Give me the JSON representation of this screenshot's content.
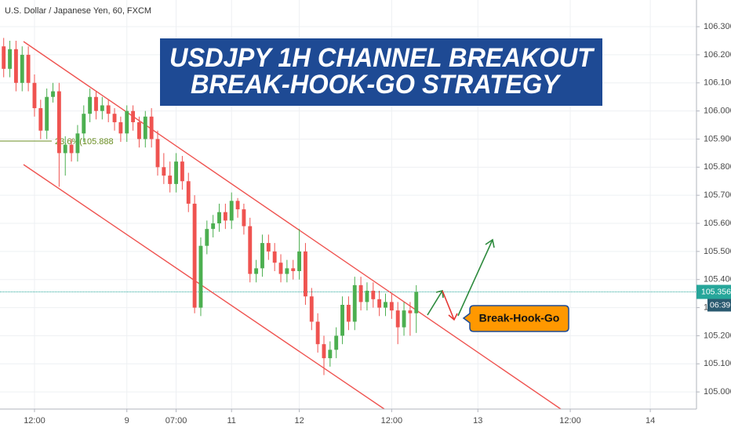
{
  "symbol": "U.S. Dollar / Japanese Yen, 60, FXCM",
  "title_lines": [
    "USDJPY 1H CHANNEL BREAKOUT",
    "BREAK-HOOK-GO STRATEGY"
  ],
  "fib_label": "23.6%(105.888",
  "callout": "Break-Hook-Go",
  "countdown": "06:39",
  "chart_data": {
    "type": "candlestick",
    "up_color": "#4caf50",
    "down_color": "#ef5350",
    "last_price": 105.356,
    "last_price_color": "#26a69a",
    "x": [
      0,
      1,
      2,
      3,
      4,
      5,
      6,
      7,
      8,
      9,
      10,
      11,
      12,
      13,
      14,
      15,
      16,
      17,
      18,
      19,
      20,
      21,
      22,
      23,
      24,
      25,
      26,
      27,
      28,
      29,
      30,
      31,
      32,
      33,
      34,
      35,
      36,
      37,
      38,
      39,
      40,
      41,
      42,
      43,
      44,
      45,
      46,
      47,
      48,
      49,
      50,
      51,
      52,
      53,
      54,
      55,
      56,
      57,
      58,
      59,
      60,
      61,
      62,
      63,
      64,
      65,
      66,
      67
    ],
    "open": [
      106.23,
      106.15,
      106.22,
      106.1,
      106.2,
      106.1,
      106.01,
      105.93,
      106.05,
      106.07,
      105.85,
      105.88,
      105.85,
      105.92,
      105.99,
      106.05,
      106.0,
      106.02,
      105.99,
      105.96,
      105.92,
      106.0,
      105.96,
      105.9,
      105.98,
      105.9,
      105.8,
      105.77,
      105.74,
      105.82,
      105.75,
      105.67,
      105.3,
      105.52,
      105.58,
      105.6,
      105.64,
      105.61,
      105.68,
      105.65,
      105.59,
      105.42,
      105.44,
      105.53,
      105.5,
      105.46,
      105.42,
      105.44,
      105.43,
      105.5,
      105.34,
      105.25,
      105.17,
      105.12,
      105.15,
      105.2,
      105.31,
      105.25,
      105.38,
      105.32,
      105.36,
      105.33,
      105.3,
      105.32,
      105.29,
      105.23,
      105.29,
      105.28
    ],
    "high": [
      106.26,
      106.25,
      106.25,
      106.23,
      106.23,
      106.13,
      106.04,
      106.08,
      106.1,
      106.1,
      105.91,
      105.9,
      105.95,
      106.02,
      106.08,
      106.07,
      106.05,
      106.04,
      106.01,
      105.98,
      106.02,
      106.02,
      105.98,
      106.0,
      106.01,
      105.93,
      105.85,
      105.82,
      105.85,
      105.84,
      105.78,
      105.7,
      105.55,
      105.61,
      105.63,
      105.67,
      105.67,
      105.71,
      105.69,
      105.67,
      105.62,
      105.47,
      105.56,
      105.56,
      105.53,
      105.49,
      105.47,
      105.47,
      105.58,
      105.53,
      105.37,
      105.28,
      105.2,
      105.18,
      105.23,
      105.34,
      105.34,
      105.41,
      105.41,
      105.39,
      105.39,
      105.36,
      105.35,
      105.35,
      105.32,
      105.32,
      105.32,
      105.38
    ],
    "low": [
      106.12,
      106.12,
      106.07,
      106.07,
      106.07,
      105.98,
      105.9,
      105.9,
      106.03,
      105.73,
      105.77,
      105.82,
      105.82,
      105.89,
      105.96,
      105.97,
      105.97,
      105.96,
      105.93,
      105.89,
      105.89,
      105.93,
      105.87,
      105.87,
      105.87,
      105.77,
      105.74,
      105.71,
      105.71,
      105.72,
      105.64,
      105.28,
      105.27,
      105.49,
      105.55,
      105.57,
      105.58,
      105.58,
      105.62,
      105.56,
      105.39,
      105.39,
      105.41,
      105.47,
      105.43,
      105.39,
      105.39,
      105.4,
      105.4,
      105.31,
      105.22,
      105.14,
      105.06,
      105.09,
      105.12,
      105.17,
      105.22,
      105.22,
      105.29,
      105.29,
      105.3,
      105.27,
      105.27,
      105.26,
      105.17,
      105.2,
      105.2,
      105.21
    ],
    "close": [
      106.15,
      106.22,
      106.1,
      106.2,
      106.1,
      106.01,
      105.93,
      106.05,
      106.07,
      105.85,
      105.88,
      105.85,
      105.92,
      105.99,
      106.05,
      106.0,
      106.02,
      105.99,
      105.96,
      105.92,
      106.0,
      105.96,
      105.9,
      105.98,
      105.9,
      105.8,
      105.77,
      105.74,
      105.82,
      105.75,
      105.67,
      105.3,
      105.52,
      105.58,
      105.6,
      105.64,
      105.61,
      105.68,
      105.65,
      105.59,
      105.42,
      105.44,
      105.53,
      105.5,
      105.46,
      105.42,
      105.44,
      105.43,
      105.5,
      105.34,
      105.25,
      105.17,
      105.12,
      105.15,
      105.2,
      105.31,
      105.25,
      105.38,
      105.32,
      105.36,
      105.33,
      105.3,
      105.32,
      105.29,
      105.23,
      105.29,
      105.28,
      105.356
    ],
    "xlim": [
      -0.6,
      112.5
    ],
    "xticks": [
      {
        "value": 5,
        "label": "12:00"
      },
      {
        "value": 20,
        "label": "9"
      },
      {
        "value": 28,
        "label": "07:00"
      },
      {
        "value": 37,
        "label": "11"
      },
      {
        "value": 48,
        "label": "12"
      },
      {
        "value": 63,
        "label": "12:00"
      },
      {
        "value": 77,
        "label": "13"
      },
      {
        "value": 92,
        "label": "12:00"
      },
      {
        "value": 105,
        "label": "14"
      }
    ],
    "ylim": [
      104.939,
      106.395
    ],
    "yticks": [
      {
        "value": 105,
        "label": "105.000"
      },
      {
        "value": 105.1,
        "label": "105.100"
      },
      {
        "value": 105.2,
        "label": "105.200"
      },
      {
        "value": 105.3,
        "label": "105.300"
      },
      {
        "value": 105.4,
        "label": "105.400"
      },
      {
        "value": 105.5,
        "label": "105.500"
      },
      {
        "value": 105.6,
        "label": "105.600"
      },
      {
        "value": 105.7,
        "label": "105.700"
      },
      {
        "value": 105.8,
        "label": "105.800"
      },
      {
        "value": 105.9,
        "label": "105.900"
      },
      {
        "value": 106,
        "label": "106.000"
      },
      {
        "value": 106.1,
        "label": "106.100"
      },
      {
        "value": 106.2,
        "label": "106.200"
      },
      {
        "value": 106.3,
        "label": "106.300"
      }
    ],
    "grid": true
  }
}
